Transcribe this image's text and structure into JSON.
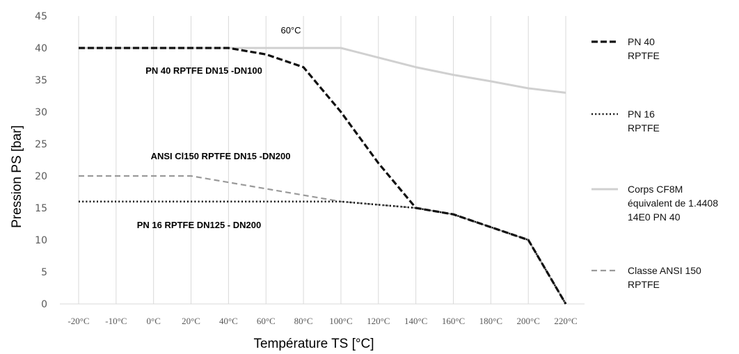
{
  "chart_data": {
    "type": "line",
    "xlabel": "Température TS [°C]",
    "ylabel": "Pression PS [bar]",
    "ylim": [
      0,
      45
    ],
    "yticks": [
      0,
      5,
      10,
      15,
      20,
      25,
      30,
      35,
      40,
      45
    ],
    "categories": [
      "-20°C",
      "-10°C",
      "0°C",
      "20°C",
      "40°C",
      "60°C",
      "80°C",
      "100°C",
      "120°C",
      "140°C",
      "160°C",
      "180°C",
      "200°C",
      "220°C"
    ],
    "grid": "vertical",
    "legend_position": "right",
    "series": [
      {
        "name": [
          "PN 40",
          "RPTFE"
        ],
        "style": "dashed-thick",
        "color": "#111111",
        "points": [
          [
            0,
            40
          ],
          [
            4,
            40
          ],
          [
            5,
            39
          ],
          [
            6,
            37
          ],
          [
            7,
            30
          ],
          [
            8,
            22
          ],
          [
            9,
            15
          ],
          [
            10,
            14
          ],
          [
            11,
            12
          ],
          [
            12,
            10
          ],
          [
            13,
            0
          ]
        ]
      },
      {
        "name": [
          "PN 16",
          "RPTFE"
        ],
        "style": "dotted",
        "color": "#111111",
        "points": [
          [
            0,
            16
          ],
          [
            7,
            16
          ],
          [
            9,
            15
          ],
          [
            10,
            14
          ],
          [
            11,
            12
          ],
          [
            12,
            10
          ],
          [
            13,
            0
          ]
        ]
      },
      {
        "name": [
          "Corps CF8M",
          "équivalent de 1.4408",
          "14E0 PN 40"
        ],
        "style": "solid-light",
        "color": "#d0d0d0",
        "points": [
          [
            0,
            40
          ],
          [
            7,
            40
          ],
          [
            8,
            38.5
          ],
          [
            9,
            37
          ],
          [
            10,
            35.8
          ],
          [
            11,
            34.8
          ],
          [
            12,
            33.7
          ],
          [
            13,
            33
          ]
        ]
      },
      {
        "name": [
          "Classe ANSI 150",
          "RPTFE"
        ],
        "style": "dashed-gray",
        "color": "#9a9a9a",
        "points": [
          [
            0,
            20
          ],
          [
            3,
            20
          ],
          [
            5,
            18
          ],
          [
            7,
            16
          ],
          [
            9,
            15
          ],
          [
            10,
            14
          ],
          [
            11,
            12
          ],
          [
            12,
            10
          ],
          [
            13,
            0
          ]
        ]
      }
    ],
    "annotations": [
      {
        "text": "60°C",
        "bold": false
      },
      {
        "text": "PN 40 RPTFE DN15 -DN100",
        "bold": true
      },
      {
        "text": "ANSI Cl150 RPTFE DN15 -DN200",
        "bold": true
      },
      {
        "text": "PN 16 RPTFE DN125 - DN200",
        "bold": true
      }
    ]
  }
}
